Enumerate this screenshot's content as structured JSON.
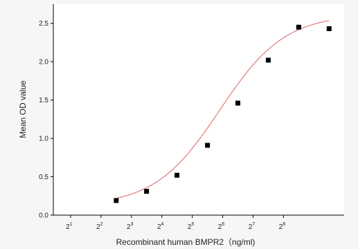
{
  "chart_data": {
    "type": "scatter",
    "title": "",
    "xlabel": "Recombinant human  BMPR2（ng/ml)",
    "ylabel": "Mean OD value",
    "x_scale": "log2",
    "x_ticks": [
      {
        "value": 2,
        "base": "2",
        "exp": "1"
      },
      {
        "value": 4,
        "base": "2",
        "exp": "2"
      },
      {
        "value": 8,
        "base": "2",
        "exp": "3"
      },
      {
        "value": 16,
        "base": "2",
        "exp": "4"
      },
      {
        "value": 32,
        "base": "2",
        "exp": "5"
      },
      {
        "value": 64,
        "base": "2",
        "exp": "6"
      },
      {
        "value": 128,
        "base": "2",
        "exp": "7"
      },
      {
        "value": 256,
        "base": "2",
        "exp": "8"
      }
    ],
    "xlim": [
      1.35,
      1020
    ],
    "y_ticks": [
      "0.0",
      "0.5",
      "1.0",
      "1.5",
      "2.0",
      "2.5"
    ],
    "ylim": [
      0.0,
      2.75
    ],
    "grid": false,
    "legend": "none",
    "series": [
      {
        "marker": "square",
        "color": "#000000",
        "points": [
          {
            "x": 5.66,
            "y": 0.19
          },
          {
            "x": 11.3,
            "y": 0.31
          },
          {
            "x": 22.6,
            "y": 0.52
          },
          {
            "x": 45.3,
            "y": 0.91
          },
          {
            "x": 90.5,
            "y": 1.46
          },
          {
            "x": 181,
            "y": 2.02
          },
          {
            "x": 362,
            "y": 2.45
          },
          {
            "x": 724,
            "y": 2.43
          }
        ]
      }
    ],
    "fit_curve": {
      "type": "4PL",
      "color": "#e07a7a",
      "bottom": 0.12,
      "top": 2.62,
      "ec50": 60,
      "hill": 1.35,
      "x_range": [
        5.66,
        724
      ]
    }
  }
}
